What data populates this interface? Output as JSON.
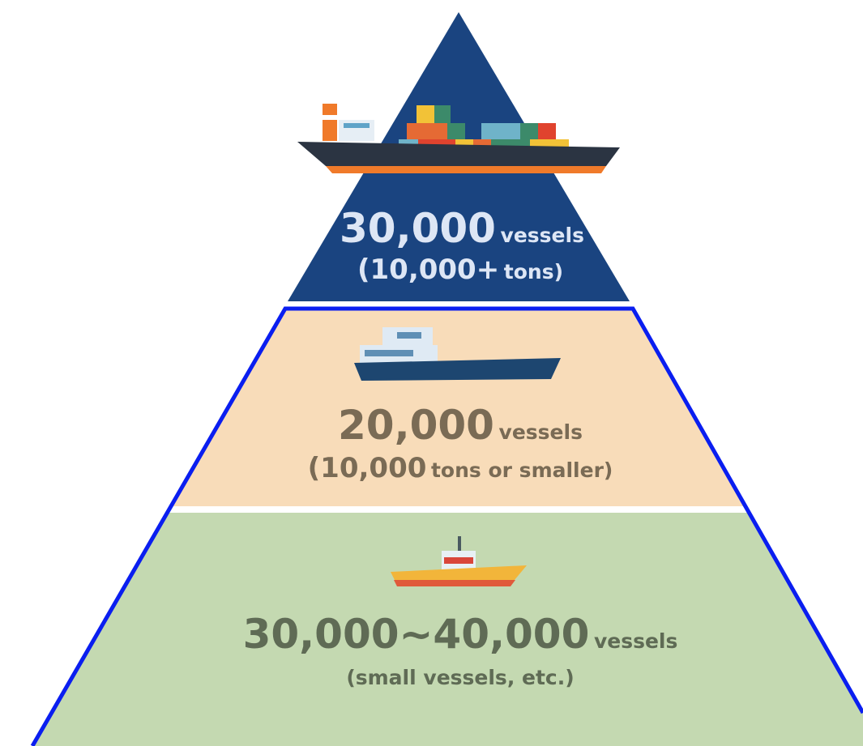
{
  "tiers": [
    {
      "count": "30,000",
      "unit": "vessels",
      "note": [
        "(10,000+",
        "tons)"
      ]
    },
    {
      "count": "20,000",
      "unit": "vessels",
      "note": [
        "(10,000",
        "tons or smaller)"
      ]
    },
    {
      "count": "30,000~40,000",
      "unit": "vessels",
      "note": [
        "(small vessels, etc.)"
      ]
    }
  ]
}
